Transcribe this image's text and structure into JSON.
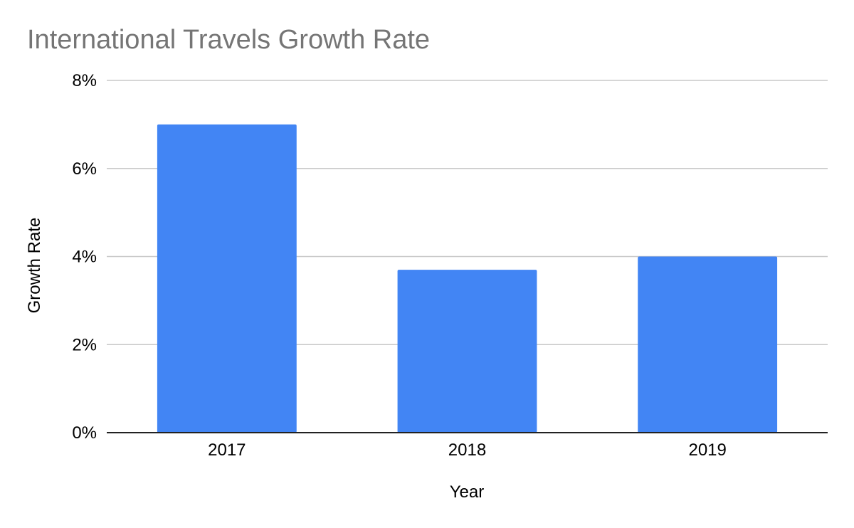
{
  "chart_data": {
    "type": "bar",
    "title": "International Travels Growth Rate",
    "xlabel": "Year",
    "ylabel": "Growth Rate",
    "categories": [
      "2017",
      "2018",
      "2019"
    ],
    "series": [
      {
        "values": [
          7.0,
          3.7,
          4.0
        ]
      }
    ],
    "ylim": [
      0,
      8
    ],
    "yticks": [
      0,
      2,
      4,
      6,
      8
    ],
    "ytick_labels": [
      "0%",
      "2%",
      "4%",
      "6%",
      "8%"
    ],
    "grid": true,
    "legend": "none",
    "colors": {
      "bar": "#4285f4",
      "title": "#757575",
      "gridline": "#c8c8c8",
      "baseline": "#222222"
    }
  }
}
